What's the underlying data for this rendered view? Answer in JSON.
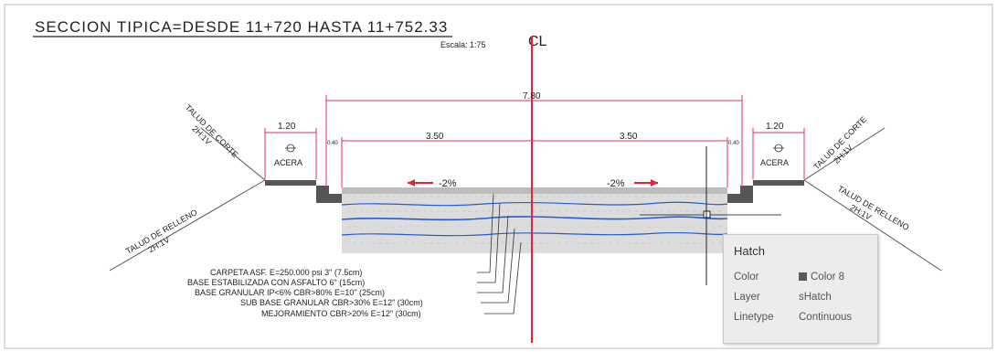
{
  "drawing": {
    "title": "SECCION TIPICA=DESDE 11+720 HASTA 11+752.33",
    "scale": "Escala: 1:75",
    "centerline": "CL",
    "dims": {
      "total": "7.80",
      "lane_left": "3.50",
      "lane_right": "3.50",
      "curb_left": "0.40",
      "curb_right": "0.40",
      "sidewalk_left": "1.20",
      "sidewalk_right": "1.20"
    },
    "labels": {
      "acera_left": "ACERA",
      "acera_right": "ACERA",
      "slope_left": "-2%",
      "slope_right": "-2%",
      "talud_corte_left_1": "TALUD DE CORTE",
      "talud_corte_left_2": "2H:1V",
      "talud_corte_right_1": "TALUD DE CORTE",
      "talud_corte_right_2": "2H:1V",
      "talud_relleno_left_1": "TALUD DE RELLENO",
      "talud_relleno_left_2": "2H:1V",
      "talud_relleno_right_1": "TALUD DE RELLENO",
      "talud_relleno_right_2": "2H:1V"
    },
    "layers": [
      "CARPETA ASF. E=250.000 psi 3\" (7.5cm)",
      "BASE ESTABILIZADA CON ASFALTO 6\" (15cm)",
      "BASE GRANULAR IP<6% CBR>80% E=10\" (25cm)",
      "SUB BASE GRANULAR CBR>30% E=12\" (30cm)",
      "MEJORAMIENTO CBR>20% E=12\" (30cm)"
    ]
  },
  "tooltip": {
    "title": "Hatch",
    "rows": [
      {
        "key": "Color",
        "value": "Color 8"
      },
      {
        "key": "Layer",
        "value": "sHatch"
      },
      {
        "key": "Linetype",
        "value": "Continuous"
      }
    ]
  },
  "colors": {
    "centerline": "#e8213b",
    "dimension": "#e0305a",
    "hatch_blue": "#1f5fd6",
    "hatch_fill": "#d9d9d9",
    "arrow": "#e8213b"
  }
}
